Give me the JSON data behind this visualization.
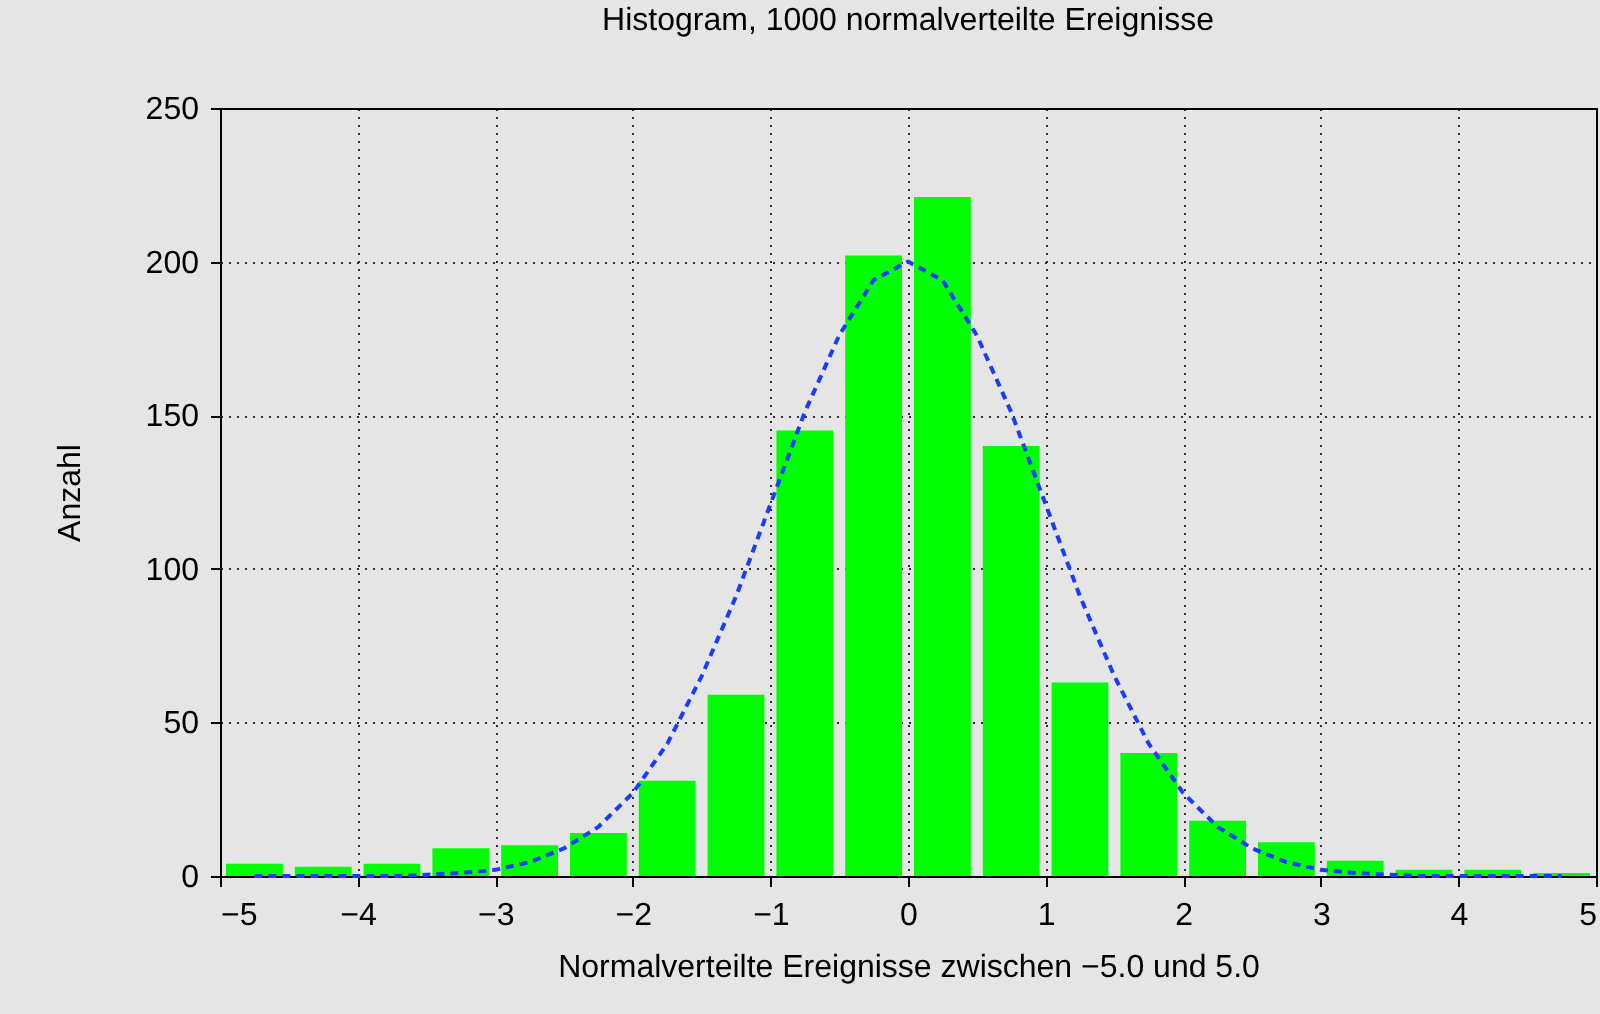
{
  "chart_data": {
    "type": "histogram",
    "title": "Histogram, 1000 normalverteilte Ereignisse",
    "xlabel": "Normalverteilte Ereignisse zwischen −5.0 und 5.0",
    "ylabel": "Anzahl",
    "bins": [
      -5,
      -4.5,
      -4,
      -3.5,
      -3,
      -2.5,
      -2,
      -1.5,
      -1,
      -0.5,
      0,
      0.5,
      1,
      1.5,
      2,
      2.5,
      3,
      3.5,
      4,
      4.5,
      5
    ],
    "series": [
      {
        "color": "#00ff00",
        "values": [
          4,
          3,
          4,
          9,
          10,
          14,
          31,
          59,
          145,
          202,
          221,
          140,
          63,
          40,
          18,
          11,
          5,
          2,
          2,
          1
        ]
      },
      {
        "type": "line",
        "color": "#1a3cff",
        "line_style": "dashed",
        "x": [
          -4.75,
          -4.5,
          -4.25,
          -4,
          -3.75,
          -3.5,
          -3.25,
          -3,
          -2.75,
          -2.5,
          -2.25,
          -2,
          -1.75,
          -1.5,
          -1.25,
          -1,
          -0.75,
          -0.5,
          -0.25,
          0,
          0.25,
          0.5,
          0.75,
          1,
          1.25,
          1.5,
          1.75,
          2,
          2.25,
          2.5,
          2.75,
          3,
          3.25,
          3.5,
          3.75,
          4,
          4.25,
          4.5,
          4.75
        ],
        "values": [
          0,
          0,
          0,
          0,
          0,
          0.4,
          1,
          2,
          4.5,
          9,
          16,
          27,
          43,
          65,
          91,
          121,
          151,
          176,
          194,
          200,
          194,
          176,
          151,
          121,
          91,
          65,
          43,
          27,
          16,
          9,
          4.5,
          2,
          1,
          0.4,
          0,
          0,
          0,
          0,
          0
        ]
      }
    ],
    "xlim": [
      -5,
      5
    ],
    "xticks": [
      -5,
      -4,
      -3,
      -2,
      -1,
      0,
      1,
      2,
      3,
      4,
      5
    ],
    "ylim": [
      0,
      250
    ],
    "yticks": [
      0,
      50,
      100,
      150,
      200,
      250
    ],
    "grid": true
  }
}
